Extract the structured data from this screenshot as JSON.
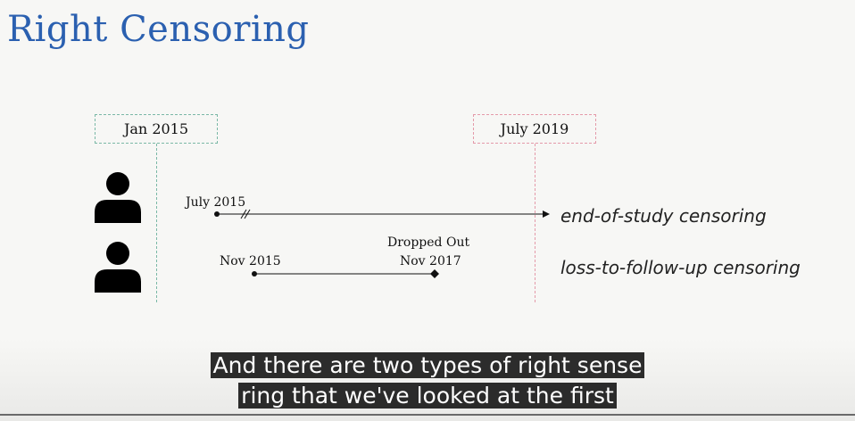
{
  "slide": {
    "title": "Right Censoring",
    "start_date": "Jan 2015",
    "end_date": "July 2019",
    "subjects": [
      {
        "start_label": "July 2015",
        "censor_type": "end-of-study censoring"
      },
      {
        "start_label": "Nov 2015",
        "event_label_top": "Dropped Out",
        "event_label_date": "Nov 2017",
        "censor_type": "loss-to-follow-up censoring"
      }
    ],
    "colors": {
      "title": "#2b60b0",
      "start_box": "#7ab8a6",
      "end_box": "#e49aa9"
    }
  },
  "captions": {
    "line1": "And there are two types of right sense",
    "line2": "ring that we've looked at the first"
  }
}
